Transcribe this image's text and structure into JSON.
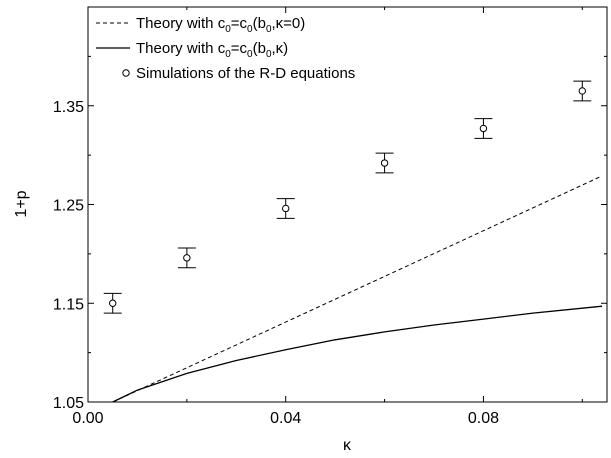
{
  "chart_data": {
    "type": "line",
    "xlabel": "κ",
    "ylabel": "1+p",
    "xlim": [
      0.0,
      0.105
    ],
    "ylim": [
      1.05,
      1.45
    ],
    "xticks": [
      "0.00",
      "0.04",
      "0.08"
    ],
    "xtick_values": [
      0.0,
      0.04,
      0.08
    ],
    "yticks": [
      "1.05",
      "1.15",
      "1.25",
      "1.35"
    ],
    "ytick_values": [
      1.05,
      1.15,
      1.25,
      1.35
    ],
    "grid": false,
    "legend_position": "top-left",
    "series": [
      {
        "name": "Theory with c0=c0(b0,κ=0)",
        "style": "dashed",
        "x": [
          0.005,
          0.104
        ],
        "y": [
          1.05,
          1.279
        ]
      },
      {
        "name": "Theory with c0=c0(b0,κ)",
        "style": "solid",
        "x": [
          0.005,
          0.01,
          0.02,
          0.03,
          0.04,
          0.05,
          0.06,
          0.07,
          0.08,
          0.09,
          0.1,
          0.104
        ],
        "y": [
          1.05,
          1.062,
          1.079,
          1.092,
          1.103,
          1.113,
          1.121,
          1.128,
          1.134,
          1.14,
          1.145,
          1.147
        ]
      },
      {
        "name": "Simulations of the R-D equations",
        "style": "markers-errorbars",
        "x": [
          0.005,
          0.02,
          0.04,
          0.06,
          0.08,
          0.1
        ],
        "y": [
          1.15,
          1.196,
          1.246,
          1.292,
          1.327,
          1.365
        ],
        "err": [
          0.01,
          0.01,
          0.01,
          0.01,
          0.01,
          0.01
        ]
      }
    ],
    "legend": {
      "dashed": {
        "pre": "Theory with c",
        "s1": "0",
        "mid1": "=c",
        "s2": "0",
        "mid2": "(b",
        "s3": "0",
        "post": ",κ=0)"
      },
      "solid": {
        "pre": "Theory with c",
        "s1": "0",
        "mid1": "=c",
        "s2": "0",
        "mid2": "(b",
        "s3": "0",
        "post": ",κ)"
      },
      "points": {
        "text": "Simulations of the R-D equations"
      }
    }
  }
}
